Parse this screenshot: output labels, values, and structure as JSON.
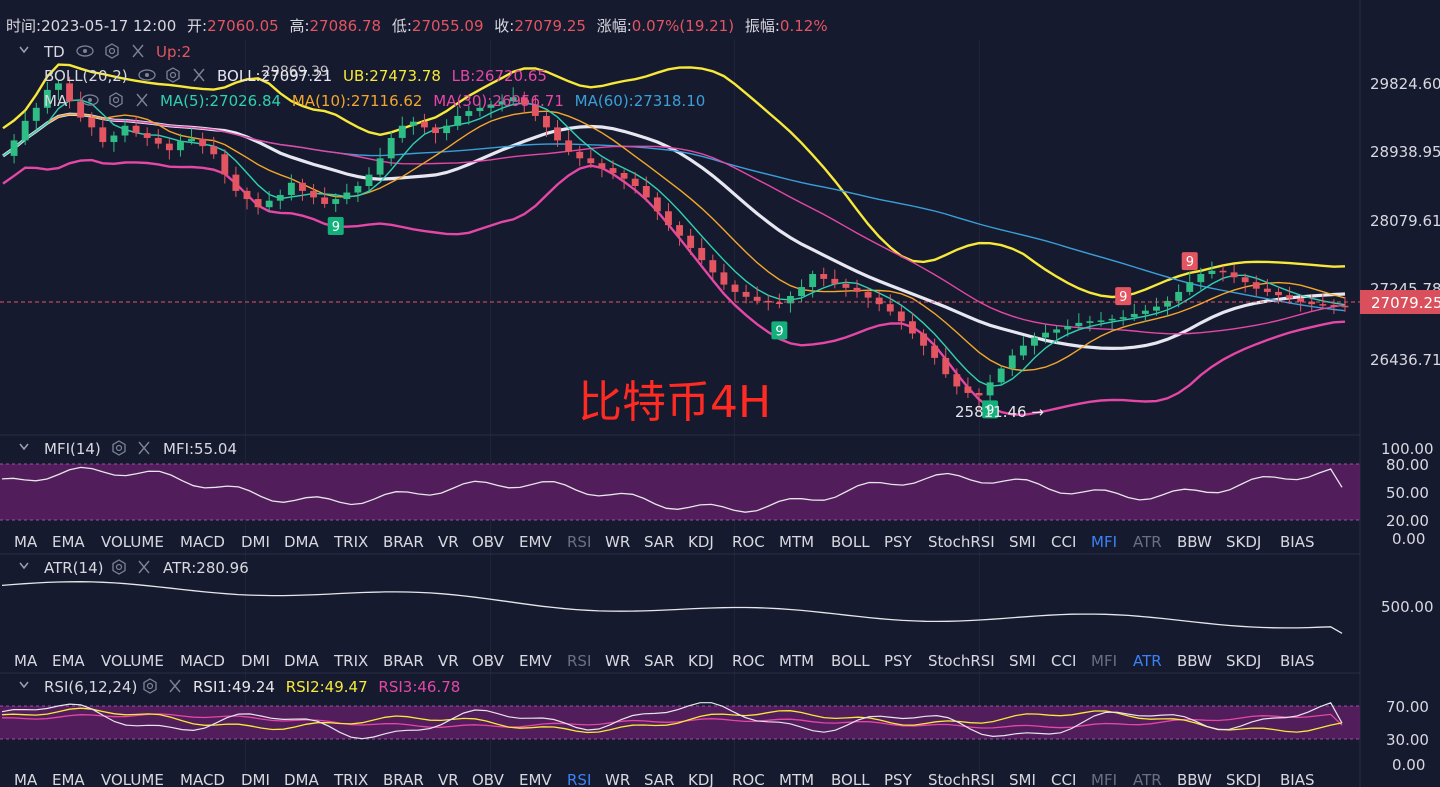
{
  "header": {
    "time_label": "时间:",
    "time": "2023-05-17 12:00",
    "open_label": "开:",
    "open": "27060.05",
    "high_label": "高:",
    "high": "27086.78",
    "low_label": "低:",
    "low": "27055.09",
    "close_label": "收:",
    "close": "27079.25",
    "change_label": "涨幅:",
    "change": "0.07%(19.21)",
    "amp_label": "振幅:",
    "amp": "0.12%"
  },
  "overlays": {
    "td": {
      "name": "TD",
      "value": "Up:2"
    },
    "boll": {
      "name": "BOLL(20,2)",
      "mid": "BOLL:27097.21",
      "ub": "UB:27473.78",
      "lb": "LB:26720.65"
    },
    "ma": {
      "name": "MA",
      "ma5": "MA(5):27026.84",
      "ma10": "MA(10):27116.62",
      "ma30": "MA(30):26956.71",
      "ma60": "MA(60):27318.10"
    },
    "hidden_high_label": "29869.39"
  },
  "watermark": "比特币4H",
  "annotations": {
    "low_marker": "25811.46 →",
    "td_nine": "9"
  },
  "price_axis": {
    "ticks": [
      "29824.60",
      "28938.95",
      "28079.61",
      "27245.78",
      "26436.71"
    ],
    "current_price": "27079.25"
  },
  "mfi": {
    "name": "MFI(14)",
    "value": "MFI:55.04",
    "ticks": [
      "100.00",
      "80.00",
      "50.00",
      "20.00",
      "0.00"
    ]
  },
  "atr": {
    "name": "ATR(14)",
    "value": "ATR:280.96",
    "ticks": [
      "500.00"
    ]
  },
  "rsi": {
    "name": "RSI(6,12,24)",
    "rsi1": "RSI1:49.24",
    "rsi2": "RSI2:49.47",
    "rsi3": "RSI3:46.78",
    "ticks": [
      "70.00",
      "30.00",
      "0.00"
    ]
  },
  "indicator_tabs": [
    "MA",
    "EMA",
    "VOLUME",
    "MACD",
    "DMI",
    "DMA",
    "TRIX",
    "BRAR",
    "VR",
    "OBV",
    "EMV",
    "RSI",
    "WR",
    "SAR",
    "KDJ",
    "ROC",
    "MTM",
    "BOLL",
    "PSY",
    "StochRSI",
    "SMI",
    "CCI",
    "MFI",
    "ATR",
    "BBW",
    "SKDJ",
    "BIAS"
  ],
  "tab_rows": [
    {
      "active": "MFI",
      "dim": [
        "RSI",
        "ATR"
      ]
    },
    {
      "active": "ATR",
      "dim": [
        "RSI",
        "MFI"
      ]
    },
    {
      "active": "RSI",
      "dim": [
        "MFI",
        "ATR"
      ]
    }
  ],
  "colors": {
    "background": "#161a2e",
    "up": "#2ebd85",
    "down": "#e35561",
    "boll_ub": "#f7e93a",
    "boll_mid": "#e7e7f2",
    "boll_lb": "#e447a6",
    "ma5": "#2ed1b0",
    "ma10": "#f2a72b",
    "ma30": "#e447a6",
    "ma60": "#3a9fd8",
    "band": "#5c1e62",
    "active_tab": "#3b82f6",
    "watermark": "#ff2a22"
  },
  "chart_data": {
    "type": "candlestick",
    "timeframe": "4H",
    "ylim": [
      25500,
      30450
    ],
    "closes": [
      28930,
      29120,
      29360,
      29520,
      29740,
      29820,
      29600,
      29400,
      29280,
      29100,
      29180,
      29300,
      29210,
      29150,
      29080,
      29000,
      29110,
      29140,
      29050,
      28950,
      28700,
      28500,
      28400,
      28300,
      28380,
      28450,
      28600,
      28500,
      28420,
      28340,
      28400,
      28480,
      28560,
      28700,
      28900,
      29150,
      29300,
      29350,
      29280,
      29210,
      29300,
      29420,
      29480,
      29520,
      29560,
      29600,
      29650,
      29560,
      29420,
      29280,
      29120,
      28980,
      28900,
      28840,
      28780,
      28720,
      28650,
      28560,
      28420,
      28250,
      28080,
      27950,
      27800,
      27650,
      27500,
      27350,
      27260,
      27200,
      27150,
      27130,
      27120,
      27210,
      27320,
      27480,
      27420,
      27360,
      27310,
      27260,
      27190,
      27110,
      27020,
      26900,
      26750,
      26600,
      26450,
      26250,
      26100,
      26020,
      25990,
      26150,
      26320,
      26480,
      26600,
      26700,
      26760,
      26800,
      26840,
      26880,
      26900,
      26910,
      26930,
      26950,
      26990,
      27030,
      27080,
      27150,
      27260,
      27380,
      27480,
      27520,
      27500,
      27440,
      27380,
      27300,
      27260,
      27220,
      27180,
      27140,
      27110,
      27100,
      27090,
      27079.25
    ],
    "notable": {
      "td9_count": 5,
      "low_price": 25811.46,
      "last_close": 27079.25
    }
  }
}
